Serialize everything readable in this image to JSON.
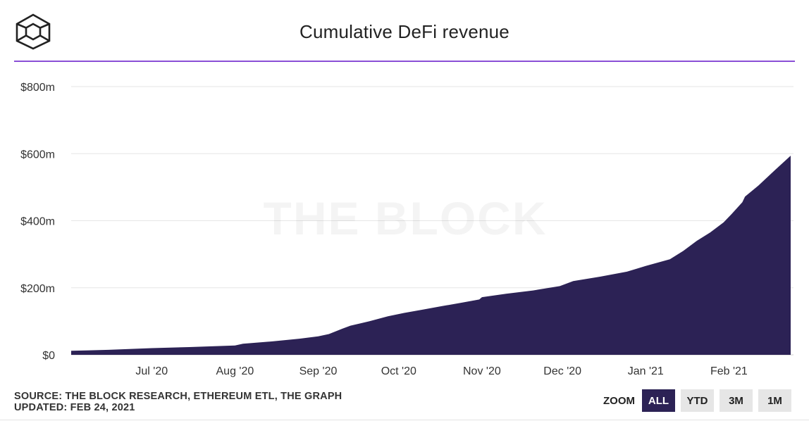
{
  "header": {
    "title": "Cumulative DeFi revenue",
    "logo_icon": "the-block-cube-logo"
  },
  "watermark": "THE BLOCK",
  "footer": {
    "source": "SOURCE: THE BLOCK RESEARCH, ETHEREUM ETL, THE GRAPH",
    "updated": "UPDATED: FEB 24, 2021"
  },
  "zoom": {
    "label": "ZOOM",
    "buttons": [
      {
        "label": "ALL",
        "active": true
      },
      {
        "label": "YTD",
        "active": false
      },
      {
        "label": "3M",
        "active": false
      },
      {
        "label": "1M",
        "active": false
      }
    ]
  },
  "colors": {
    "area": "#2c2255",
    "rule": "#8a4fd6",
    "grid": "#e6e6e6"
  },
  "chart_data": {
    "type": "area",
    "title": "Cumulative DeFi revenue",
    "xlabel": "",
    "ylabel": "",
    "ylim": [
      0,
      800
    ],
    "y_unit": "m",
    "y_ticks": [
      0,
      200,
      400,
      600,
      800
    ],
    "y_tick_labels": [
      "$0",
      "$200m",
      "$400m",
      "$600m",
      "$800m"
    ],
    "x_tick_labels": [
      "Jul '20",
      "Aug '20",
      "Sep '20",
      "Oct '20",
      "Nov '20",
      "Dec '20",
      "Jan '21",
      "Feb '21"
    ],
    "x_tick_dates": [
      "2020-07-01",
      "2020-08-01",
      "2020-09-01",
      "2020-10-01",
      "2020-11-01",
      "2020-12-01",
      "2021-01-01",
      "2021-02-01"
    ],
    "grid": true,
    "legend": "none",
    "series": [
      {
        "values": [
          [
            "2020-06-01",
            12
          ],
          [
            "2020-06-15",
            15
          ],
          [
            "2020-07-01",
            20
          ],
          [
            "2020-07-15",
            23
          ],
          [
            "2020-08-01",
            28
          ],
          [
            "2020-08-04",
            33
          ],
          [
            "2020-08-15",
            40
          ],
          [
            "2020-08-25",
            48
          ],
          [
            "2020-09-01",
            55
          ],
          [
            "2020-09-05",
            62
          ],
          [
            "2020-09-10",
            78
          ],
          [
            "2020-09-13",
            87
          ],
          [
            "2020-09-20",
            100
          ],
          [
            "2020-09-27",
            115
          ],
          [
            "2020-10-03",
            125
          ],
          [
            "2020-10-10",
            135
          ],
          [
            "2020-10-17",
            145
          ],
          [
            "2020-10-24",
            155
          ],
          [
            "2020-10-31",
            165
          ],
          [
            "2020-11-01",
            172
          ],
          [
            "2020-11-10",
            182
          ],
          [
            "2020-11-20",
            192
          ],
          [
            "2020-11-30",
            205
          ],
          [
            "2020-12-05",
            220
          ],
          [
            "2020-12-15",
            233
          ],
          [
            "2020-12-25",
            248
          ],
          [
            "2021-01-01",
            265
          ],
          [
            "2021-01-10",
            285
          ],
          [
            "2021-01-15",
            310
          ],
          [
            "2021-01-20",
            340
          ],
          [
            "2021-01-25",
            365
          ],
          [
            "2021-01-30",
            395
          ],
          [
            "2021-02-02",
            420
          ],
          [
            "2021-02-06",
            455
          ],
          [
            "2021-02-07",
            472
          ],
          [
            "2021-02-12",
            505
          ],
          [
            "2021-02-18",
            550
          ],
          [
            "2021-02-24",
            594
          ]
        ]
      }
    ]
  }
}
